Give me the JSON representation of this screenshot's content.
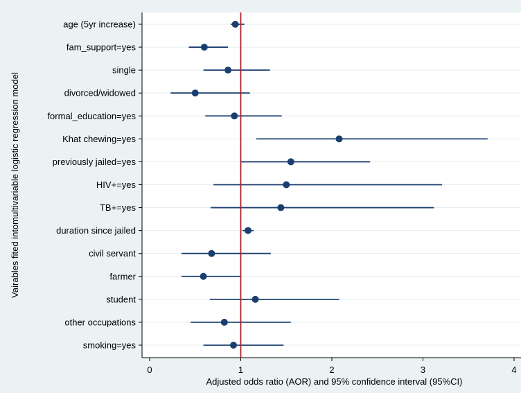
{
  "chart_data": {
    "type": "forest",
    "xlabel": "Adjusted odds ratio (AOR) and 95% confidence interval (95%CI)",
    "ylabel": "Vairables fited intomultivariable logistic regression model",
    "xlim": [
      -0.1,
      4.0
    ],
    "xticks": [
      0,
      1,
      2,
      3,
      4
    ],
    "xtick_labels": [
      "0",
      "1",
      "2",
      "3",
      "4"
    ],
    "reference_line": 1,
    "grid": true,
    "colors": {
      "marker": "#1a3f6f",
      "ci_line": "#1a3f6f",
      "reference_line": "#b0202a",
      "plot_background": "#ffffff",
      "outer_background": "#eaf2f3",
      "gridline": "#e4ecee"
    },
    "rows": [
      {
        "label": "age (5yr increase)",
        "or": 0.94,
        "lower": 0.89,
        "upper": 1.04
      },
      {
        "label": "fam_support=yes",
        "or": 0.6,
        "lower": 0.43,
        "upper": 0.86
      },
      {
        "label": "single",
        "or": 0.86,
        "lower": 0.59,
        "upper": 1.32
      },
      {
        "label": "divorced/widowed",
        "or": 0.5,
        "lower": 0.23,
        "upper": 1.1
      },
      {
        "label": "formal_education=yes",
        "or": 0.93,
        "lower": 0.61,
        "upper": 1.45
      },
      {
        "label": "Khat chewing=yes",
        "or": 2.08,
        "lower": 1.17,
        "upper": 3.71
      },
      {
        "label": "previously jailed=yes",
        "or": 1.55,
        "lower": 1.0,
        "upper": 2.42
      },
      {
        "label": "HIV+=yes",
        "or": 1.5,
        "lower": 0.7,
        "upper": 3.21
      },
      {
        "label": "TB+=yes",
        "or": 1.44,
        "lower": 0.67,
        "upper": 3.12
      },
      {
        "label": "duration since jailed",
        "or": 1.08,
        "lower": 1.02,
        "upper": 1.14
      },
      {
        "label": "civil servant ",
        "or": 0.68,
        "lower": 0.35,
        "upper": 1.33
      },
      {
        "label": "farmer",
        "or": 0.59,
        "lower": 0.35,
        "upper": 1.0
      },
      {
        "label": "student",
        "or": 1.16,
        "lower": 0.66,
        "upper": 2.08
      },
      {
        "label": "other occupations",
        "or": 0.82,
        "lower": 0.45,
        "upper": 1.55
      },
      {
        "label": "smoking=yes",
        "or": 0.92,
        "lower": 0.59,
        "upper": 1.47
      }
    ]
  }
}
